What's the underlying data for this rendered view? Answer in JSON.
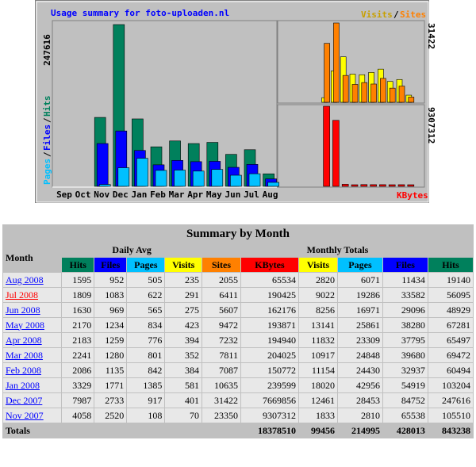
{
  "chart": {
    "title": "Usage summary for foto-uploaden.nl",
    "legend_visits": "Visits",
    "legend_slash": "/",
    "legend_sites": "Sites",
    "legend_kbytes": "KBytes",
    "left_axis_max_label": "247616",
    "left_legend_pages": "Pages",
    "left_legend_files": "Files",
    "left_legend_hits": "Hits",
    "left_legend_sep1": "/",
    "left_legend_sep2": "/",
    "right_top_max_label": "31422",
    "right_bottom_max_label": "9307312"
  },
  "colors": {
    "hits": "#00805c",
    "files": "#0000ff",
    "pages": "#00c0ff",
    "visits": "#ffff00",
    "sites": "#ff8000",
    "kbytes": "#ff0000",
    "title": "#0000ff",
    "link": "#0000ff",
    "current_link": "#ff0000"
  },
  "chart_data": {
    "type": "bar",
    "categories": [
      "Sep",
      "Oct",
      "Nov",
      "Dec",
      "Jan",
      "Feb",
      "Mar",
      "Apr",
      "May",
      "Jun",
      "Jul",
      "Aug"
    ],
    "series": [
      {
        "name": "Hits",
        "values": [
          0,
          0,
          105510,
          247616,
          103204,
          60494,
          69472,
          65497,
          67281,
          48929,
          56095,
          19140
        ]
      },
      {
        "name": "Files",
        "values": [
          0,
          0,
          65538,
          84752,
          54919,
          32937,
          39680,
          37795,
          38280,
          29096,
          33582,
          11434
        ]
      },
      {
        "name": "Pages",
        "values": [
          0,
          0,
          2810,
          28453,
          42956,
          24430,
          24848,
          23309,
          25861,
          16971,
          19286,
          6071
        ]
      },
      {
        "name": "Visits",
        "values": [
          0,
          0,
          1833,
          12461,
          18020,
          11154,
          10917,
          11832,
          13141,
          8256,
          9022,
          2820
        ]
      },
      {
        "name": "Sites",
        "values": [
          0,
          0,
          23350,
          31422,
          10635,
          7087,
          7811,
          7232,
          9472,
          5607,
          6411,
          2055
        ]
      },
      {
        "name": "KBytes",
        "values": [
          0,
          0,
          9307312,
          7669856,
          239599,
          150772,
          204025,
          194940,
          193871,
          162176,
          190425,
          65534
        ]
      }
    ],
    "title": "Usage summary for foto-uploaden.nl"
  },
  "table": {
    "title": "Summary by Month",
    "month_header": "Month",
    "daily_avg_header": "Daily Avg",
    "monthly_totals_header": "Monthly Totals",
    "daily_cols": [
      "Hits",
      "Files",
      "Pages",
      "Visits"
    ],
    "monthly_cols": [
      "Sites",
      "KBytes",
      "Visits",
      "Pages",
      "Files",
      "Hits"
    ],
    "rows": [
      {
        "month": "Aug 2008",
        "d_hits": "1595",
        "d_files": "952",
        "d_pages": "505",
        "d_visits": "235",
        "sites": "2055",
        "kbytes": "65534",
        "visits": "2820",
        "pages": "6071",
        "files": "11434",
        "hits": "19140"
      },
      {
        "month": "Jul 2008",
        "d_hits": "1809",
        "d_files": "1083",
        "d_pages": "622",
        "d_visits": "291",
        "sites": "6411",
        "kbytes": "190425",
        "visits": "9022",
        "pages": "19286",
        "files": "33582",
        "hits": "56095"
      },
      {
        "month": "Jun 2008",
        "d_hits": "1630",
        "d_files": "969",
        "d_pages": "565",
        "d_visits": "275",
        "sites": "5607",
        "kbytes": "162176",
        "visits": "8256",
        "pages": "16971",
        "files": "29096",
        "hits": "48929"
      },
      {
        "month": "May 2008",
        "d_hits": "2170",
        "d_files": "1234",
        "d_pages": "834",
        "d_visits": "423",
        "sites": "9472",
        "kbytes": "193871",
        "visits": "13141",
        "pages": "25861",
        "files": "38280",
        "hits": "67281"
      },
      {
        "month": "Apr 2008",
        "d_hits": "2183",
        "d_files": "1259",
        "d_pages": "776",
        "d_visits": "394",
        "sites": "7232",
        "kbytes": "194940",
        "visits": "11832",
        "pages": "23309",
        "files": "37795",
        "hits": "65497"
      },
      {
        "month": "Mar 2008",
        "d_hits": "2241",
        "d_files": "1280",
        "d_pages": "801",
        "d_visits": "352",
        "sites": "7811",
        "kbytes": "204025",
        "visits": "10917",
        "pages": "24848",
        "files": "39680",
        "hits": "69472"
      },
      {
        "month": "Feb 2008",
        "d_hits": "2086",
        "d_files": "1135",
        "d_pages": "842",
        "d_visits": "384",
        "sites": "7087",
        "kbytes": "150772",
        "visits": "11154",
        "pages": "24430",
        "files": "32937",
        "hits": "60494"
      },
      {
        "month": "Jan 2008",
        "d_hits": "3329",
        "d_files": "1771",
        "d_pages": "1385",
        "d_visits": "581",
        "sites": "10635",
        "kbytes": "239599",
        "visits": "18020",
        "pages": "42956",
        "files": "54919",
        "hits": "103204"
      },
      {
        "month": "Dec 2007",
        "d_hits": "7987",
        "d_files": "2733",
        "d_pages": "917",
        "d_visits": "401",
        "sites": "31422",
        "kbytes": "7669856",
        "visits": "12461",
        "pages": "28453",
        "files": "84752",
        "hits": "247616"
      },
      {
        "month": "Nov 2007",
        "d_hits": "4058",
        "d_files": "2520",
        "d_pages": "108",
        "d_visits": "70",
        "sites": "23350",
        "kbytes": "9307312",
        "visits": "1833",
        "pages": "2810",
        "files": "65538",
        "hits": "105510"
      }
    ],
    "totals": {
      "label": "Totals",
      "kbytes": "18378510",
      "visits": "99456",
      "pages": "214995",
      "files": "428013",
      "hits": "843238"
    }
  }
}
